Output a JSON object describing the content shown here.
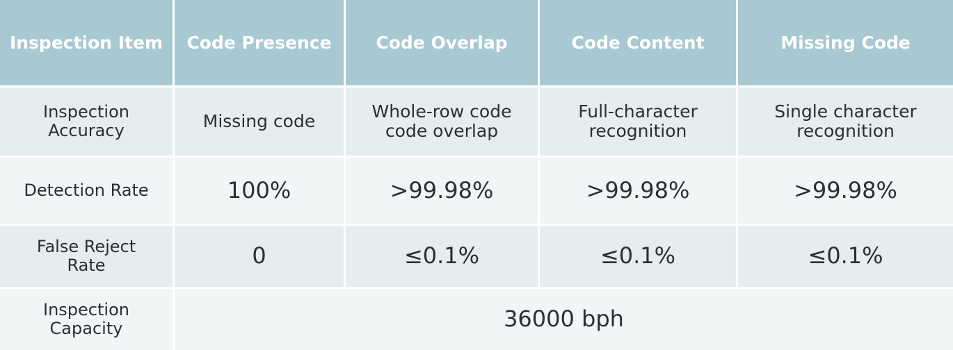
{
  "table": {
    "header": [
      "Inspection Item",
      "Code Presence",
      "Code Overlap",
      "Code Content",
      "Missing Code"
    ],
    "rows": [
      {
        "label": [
          "Inspection",
          "Accuracy"
        ],
        "cells": [
          [
            "Missing code"
          ],
          [
            "Whole-row code",
            "code overlap"
          ],
          [
            "Full-character",
            "recognition"
          ],
          [
            "Single character",
            "recognition"
          ]
        ]
      },
      {
        "label": [
          "Detection Rate"
        ],
        "cells": [
          [
            "100%"
          ],
          [
            ">99.98%"
          ],
          [
            ">99.98%"
          ],
          [
            ">99.98%"
          ]
        ]
      },
      {
        "label": [
          "False Reject",
          "Rate"
        ],
        "cells": [
          [
            "0"
          ],
          [
            "≤0.1%"
          ],
          [
            "≤0.1%"
          ],
          [
            "≤0.1%"
          ]
        ]
      },
      {
        "label": [
          "Inspection",
          "Capacity"
        ],
        "cells": [
          [
            "36000 bph"
          ]
        ]
      }
    ]
  }
}
